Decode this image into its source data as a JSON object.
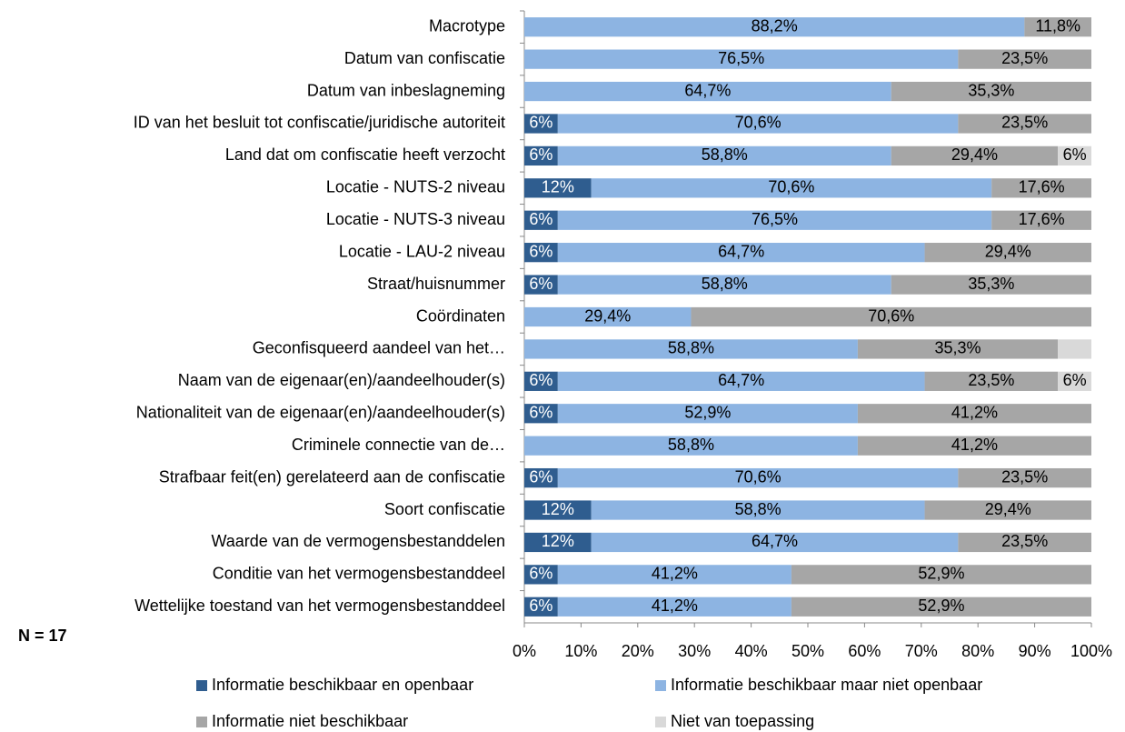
{
  "chart_data": {
    "type": "stacked_barh",
    "categories": [
      "Macrotype",
      "Datum van confiscatie",
      "Datum van inbeslagneming",
      "ID van het besluit tot confiscatie/juridische autoriteit",
      "Land dat om confiscatie heeft verzocht",
      "Locatie - NUTS-2 niveau",
      "Locatie - NUTS-3 niveau",
      "Locatie - LAU-2 niveau",
      "Straat/huisnummer",
      "Coördinaten",
      "Geconfisqueerd aandeel van het…",
      "Naam van de eigenaar(en)/aandeelhouder(s)",
      "Nationaliteit van de eigenaar(en)/aandeelhouder(s)",
      "Criminele connectie van de…",
      "Strafbaar feit(en) gerelateerd aan de confiscatie",
      "Soort confiscatie",
      "Waarde van de vermogensbestanddelen",
      "Conditie van het vermogensbestanddeel",
      "Wettelijke toestand van het vermogensbestanddeel"
    ],
    "series": [
      {
        "name": "Informatie beschikbaar en openbaar",
        "color": "#2f5d8f",
        "values": [
          0,
          0,
          0,
          5.9,
          5.9,
          11.8,
          5.9,
          5.9,
          5.9,
          0,
          0,
          5.9,
          5.9,
          0,
          5.9,
          11.8,
          11.8,
          5.9,
          5.9
        ],
        "value_labels": [
          null,
          null,
          null,
          "6%",
          "6%",
          "12%",
          "6%",
          "6%",
          "6%",
          null,
          null,
          "6%",
          "6%",
          null,
          "6%",
          "12%",
          "12%",
          "6%",
          "6%"
        ]
      },
      {
        "name": "Informatie beschikbaar maar niet openbaar",
        "color": "#8db4e2",
        "values": [
          88.2,
          76.5,
          64.7,
          70.6,
          58.8,
          70.6,
          76.5,
          64.7,
          58.8,
          29.4,
          58.8,
          64.7,
          52.9,
          58.8,
          70.6,
          58.8,
          64.7,
          41.2,
          41.2
        ],
        "value_labels": [
          "88,2%",
          "76,5%",
          "64,7%",
          "70,6%",
          "58,8%",
          "70,6%",
          "76,5%",
          "64,7%",
          "58,8%",
          "29,4%",
          "58,8%",
          "64,7%",
          "52,9%",
          "58,8%",
          "70,6%",
          "58,8%",
          "64,7%",
          "41,2%",
          "41,2%"
        ]
      },
      {
        "name": "Informatie niet beschikbaar",
        "color": "#a6a6a6",
        "values": [
          11.8,
          23.5,
          35.3,
          23.5,
          29.4,
          17.6,
          17.6,
          29.4,
          35.3,
          70.6,
          35.3,
          23.5,
          41.2,
          41.2,
          23.5,
          29.4,
          23.5,
          52.9,
          52.9
        ],
        "value_labels": [
          "11,8%",
          "23,5%",
          "35,3%",
          "23,5%",
          "29,4%",
          "17,6%",
          "17,6%",
          "29,4%",
          "35,3%",
          "70,6%",
          "35,3%",
          "23,5%",
          "41,2%",
          "41,2%",
          "23,5%",
          "29,4%",
          "23,5%",
          "52,9%",
          "52,9%"
        ]
      },
      {
        "name": "Niet van toepassing",
        "color": "#d9d9d9",
        "values": [
          0,
          0,
          0,
          0,
          5.9,
          0,
          0,
          0,
          0,
          0,
          5.9,
          5.9,
          0,
          0,
          0,
          0,
          0,
          0,
          0
        ],
        "value_labels": [
          null,
          null,
          null,
          null,
          "6%",
          null,
          null,
          null,
          null,
          null,
          null,
          "6%",
          null,
          null,
          null,
          null,
          null,
          null,
          null
        ]
      }
    ],
    "xlim": [
      0,
      100
    ],
    "xticks": [
      {
        "value": 0,
        "label": "0%"
      },
      {
        "value": 10,
        "label": "10%"
      },
      {
        "value": 20,
        "label": "20%"
      },
      {
        "value": 30,
        "label": "30%"
      },
      {
        "value": 40,
        "label": "40%"
      },
      {
        "value": 50,
        "label": "50%"
      },
      {
        "value": 60,
        "label": "60%"
      },
      {
        "value": 70,
        "label": "70%"
      },
      {
        "value": 80,
        "label": "80%"
      },
      {
        "value": 90,
        "label": "90%"
      },
      {
        "value": 100,
        "label": "100%"
      }
    ],
    "note": "N = 17"
  }
}
